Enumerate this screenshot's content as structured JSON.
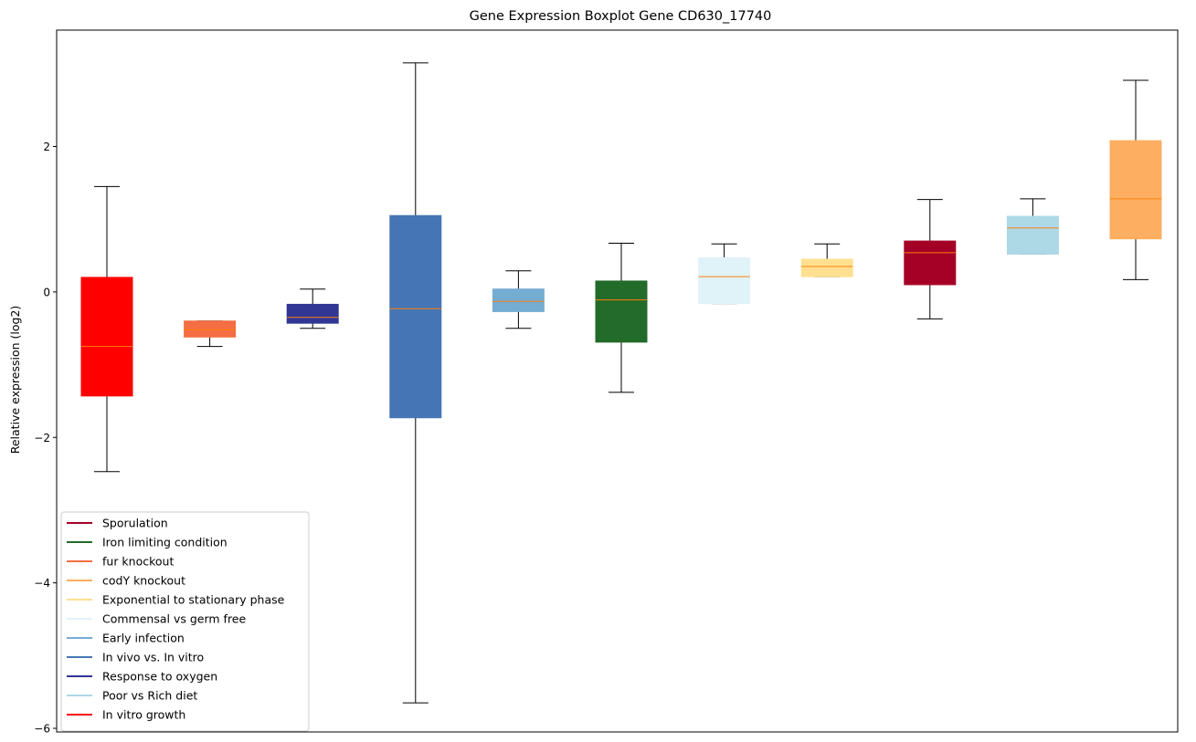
{
  "chart_data": {
    "type": "boxplot",
    "title": "Gene Expression Boxplot Gene CD630_17740",
    "xlabel": "",
    "ylabel": "Relative expression (log2)",
    "ylim": [
      -6.05,
      3.6
    ],
    "yticks": [
      {
        "value": 2,
        "label": "2"
      },
      {
        "value": 0,
        "label": "0"
      },
      {
        "value": -2,
        "label": "−2"
      },
      {
        "value": -4,
        "label": "−4"
      },
      {
        "value": -6,
        "label": "−6"
      }
    ],
    "grid": false,
    "legend_position": "bottom-left",
    "median_color": "#ff7f0e",
    "boxes": [
      {
        "name": "In vitro growth",
        "color": "#ff0000",
        "whisker_low": -2.47,
        "q1": -1.43,
        "median": -0.75,
        "q3": 0.2,
        "whisker_high": 1.45
      },
      {
        "name": "fur knockout",
        "color": "#f46d43",
        "whisker_low": -0.75,
        "q1": -0.62,
        "median": -0.52,
        "q3": -0.4,
        "whisker_high": -0.4
      },
      {
        "name": "Response to oxygen",
        "color": "#313695",
        "whisker_low": -0.5,
        "q1": -0.43,
        "median": -0.35,
        "q3": -0.17,
        "whisker_high": 0.04
      },
      {
        "name": "In vivo vs. In vitro",
        "color": "#4575b4",
        "whisker_low": -5.65,
        "q1": -1.73,
        "median": -0.23,
        "q3": 1.05,
        "whisker_high": 3.15
      },
      {
        "name": "Early infection",
        "color": "#74add1",
        "whisker_low": -0.5,
        "q1": -0.27,
        "median": -0.13,
        "q3": 0.04,
        "whisker_high": 0.29
      },
      {
        "name": "Iron limiting condition",
        "color": "#226b2a",
        "whisker_low": -1.38,
        "q1": -0.69,
        "median": -0.11,
        "q3": 0.15,
        "whisker_high": 0.67
      },
      {
        "name": "Commensal vs germ free",
        "color": "#e0f3f8",
        "whisker_low": -0.16,
        "q1": -0.16,
        "median": 0.21,
        "q3": 0.47,
        "whisker_high": 0.66
      },
      {
        "name": "Exponential to stationary phase",
        "color": "#fee090",
        "whisker_low": 0.21,
        "q1": 0.21,
        "median": 0.35,
        "q3": 0.45,
        "whisker_high": 0.66
      },
      {
        "name": "Sporulation",
        "color": "#a50026",
        "whisker_low": -0.37,
        "q1": 0.1,
        "median": 0.54,
        "q3": 0.7,
        "whisker_high": 1.27
      },
      {
        "name": "Poor vs Rich diet",
        "color": "#add8e6",
        "whisker_low": 0.52,
        "q1": 0.52,
        "median": 0.88,
        "q3": 1.04,
        "whisker_high": 1.28
      },
      {
        "name": "codY knockout",
        "color": "#fdae61",
        "whisker_low": 0.17,
        "q1": 0.73,
        "median": 1.28,
        "q3": 2.08,
        "whisker_high": 2.91
      }
    ],
    "legend": [
      {
        "label": "Sporulation",
        "color": "#a50026"
      },
      {
        "label": "Iron limiting condition",
        "color": "#226b2a"
      },
      {
        "label": "fur knockout",
        "color": "#f46d43"
      },
      {
        "label": "codY knockout",
        "color": "#fdae61"
      },
      {
        "label": "Exponential to stationary phase",
        "color": "#fee090"
      },
      {
        "label": "Commensal vs germ free",
        "color": "#e0f3f8"
      },
      {
        "label": "Early infection",
        "color": "#74add1"
      },
      {
        "label": "In vivo vs. In vitro",
        "color": "#4575b4"
      },
      {
        "label": "Response to oxygen",
        "color": "#313695"
      },
      {
        "label": "Poor vs Rich diet",
        "color": "#add8e6"
      },
      {
        "label": "In vitro growth",
        "color": "#ff0000"
      }
    ]
  }
}
